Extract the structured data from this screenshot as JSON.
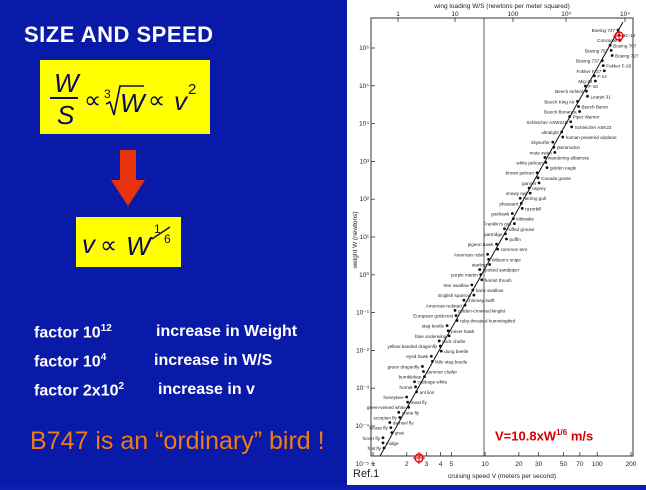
{
  "title": "SIZE AND SPEED",
  "equation_main": {
    "W": "W",
    "S": "S",
    "prop": "∝",
    "root_index": "3",
    "root_W": "W",
    "v": "v",
    "exp": "2"
  },
  "equation_result": {
    "v": "v",
    "prop": "∝",
    "W": "W",
    "exp_num": "1",
    "exp_den": "6"
  },
  "factors": [
    {
      "value": "factor  10",
      "sup": "12",
      "text": "increase in Weight"
    },
    {
      "value": "factor  10",
      "sup": "4",
      "text": "increase in W/S"
    },
    {
      "value": "factor  2x10",
      "sup": "2",
      "text": "increase in v"
    }
  ],
  "bird_statement": "B747 is an “ordinary” bird !",
  "reference": "Ref.1",
  "chart": {
    "top_axis_label": "wing loading W/S (newtons per meter squared)",
    "top_ticks": [
      "1",
      "10",
      "100",
      "10³",
      "10⁴"
    ],
    "bottom_axis_label": "cruising speed V (meters per second)",
    "bottom_ticks": [
      "1",
      "2",
      "3",
      "4",
      "5",
      "10",
      "20",
      "30",
      "50",
      "70",
      "100",
      "200"
    ],
    "y_axis_label": "weight W (newtons)",
    "y_ticks": [
      "10⁶",
      "10⁵",
      "10⁴",
      "10³",
      "10²",
      "10¹",
      "10⁰",
      "10⁻¹",
      "10⁻²",
      "10⁻³",
      "10⁻⁴",
      "10⁻⁵"
    ],
    "formula": "V=10.8xW",
    "formula_exp": "1/6",
    "formula_unit": " m/s",
    "points": [
      "Boeing 747",
      "DC-10",
      "Concorde",
      "Boeing 767",
      "Boeing 757",
      "Boeing 727",
      "Boeing 737",
      "Fokker F-28",
      "Fokker F-27",
      "F-14",
      "Mig-23",
      "F-16",
      "Beech Airliner",
      "Learjet 31",
      "Beech King Air",
      "Beech Baron",
      "Beech Bonanza",
      "Piper Warrior",
      "Schleicher ASW22B",
      "Schleicher ASK23",
      "ultralight",
      "human-powered airplane",
      "skysurfer",
      "pteranodon",
      "mute swan",
      "wandering albatross",
      "white pelican",
      "golden eagle",
      "brown pelican",
      "Canada goose",
      "gannet",
      "osprey",
      "snowy owl",
      "herring gull",
      "pheasant",
      "razorbill",
      "goshawk",
      "kittiwake",
      "Franklin's gull",
      "ruffed grouse",
      "partridge",
      "puffin",
      "pigeon hawk",
      "common tern",
      "American robin",
      "Wilson's snipe",
      "starling",
      "spotted sandpiper",
      "purple martin",
      "hermit thrush",
      "tree swallow",
      "bank swallow",
      "English sparrow",
      "chimney swift",
      "American redstart",
      "golden-crowned kinglet",
      "European goldcrest",
      "ruby-throated hummingbird",
      "stag beetle",
      "privet hawk",
      "blue underwing",
      "cock chafer",
      "yellow-banded dragonfly",
      "dung beetle",
      "eyed hawk",
      "little stag beetle",
      "green dragonfly",
      "summer chafer",
      "bumblebee",
      "cabbage white",
      "hornet",
      "ant lion",
      "honeybee",
      "meat fly",
      "green-veined white",
      "crane fly",
      "scorpion fly",
      "damsel fly",
      "house fly",
      "gnat",
      "hover fly",
      "midge",
      "fruit fly"
    ]
  },
  "colors": {
    "background": "#0a1aa8",
    "highlight": "#ffff00",
    "arrow": "#e8320c",
    "statement": "#f07b13",
    "formula": "#d20000"
  }
}
